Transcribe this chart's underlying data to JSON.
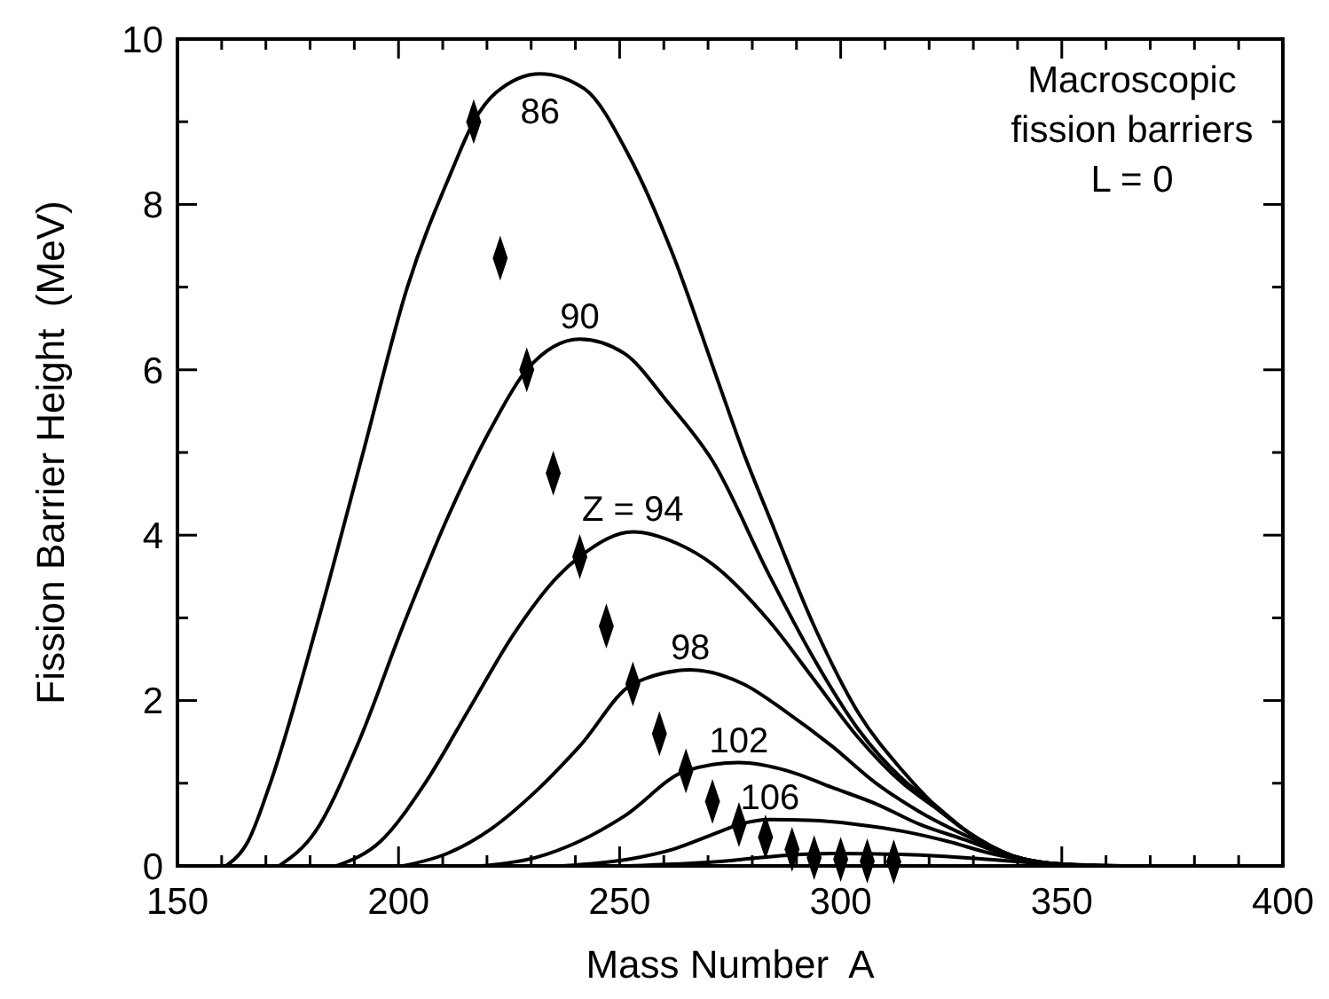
{
  "chart_data": {
    "type": "line",
    "xlabel": "Mass Number  A",
    "ylabel": "Fission Barrier Height  (MeV)",
    "xlim": [
      150,
      400
    ],
    "ylim": [
      0,
      10
    ],
    "xticks": [
      150,
      {
        "value": 160,
        "label": null
      },
      {
        "value": 170,
        "label": null
      },
      {
        "value": 180,
        "label": null
      },
      {
        "value": 190,
        "label": null
      },
      200,
      {
        "value": 210,
        "label": null
      },
      {
        "value": 220,
        "label": null
      },
      {
        "value": 230,
        "label": null
      },
      {
        "value": 240,
        "label": null
      },
      250,
      {
        "value": 260,
        "label": null
      },
      {
        "value": 270,
        "label": null
      },
      {
        "value": 280,
        "label": null
      },
      {
        "value": 290,
        "label": null
      },
      300,
      {
        "value": 310,
        "label": null
      },
      {
        "value": 320,
        "label": null
      },
      {
        "value": 330,
        "label": null
      },
      {
        "value": 340,
        "label": null
      },
      350,
      {
        "value": 360,
        "label": null
      },
      {
        "value": 370,
        "label": null
      },
      {
        "value": 380,
        "label": null
      },
      {
        "value": 390,
        "label": null
      },
      400
    ],
    "yticks": [
      0,
      {
        "value": 1,
        "label": null
      },
      2,
      {
        "value": 3,
        "label": null
      },
      4,
      {
        "value": 5,
        "label": null
      },
      6,
      {
        "value": 7,
        "label": null
      },
      8,
      {
        "value": 9,
        "label": null
      },
      10
    ],
    "grid": false,
    "legend": false,
    "line_style": "solid",
    "series": [
      {
        "name": "86",
        "color": "#000000",
        "x": [
          161,
          166,
          171,
          182,
          192,
          202,
          212,
          217,
          222,
          232,
          242,
          252,
          262,
          272,
          278,
          284,
          294,
          304,
          314,
          321,
          329,
          339,
          350,
          360
        ],
        "values": [
          0,
          0.3,
          1.0,
          3.0,
          5.0,
          7.0,
          8.4,
          9.0,
          9.35,
          9.58,
          9.4,
          8.6,
          7.4,
          5.9,
          5.0,
          4.2,
          2.9,
          1.85,
          1.15,
          0.75,
          0.4,
          0.12,
          0.02,
          0
        ]
      },
      {
        "name": "90",
        "color": "#000000",
        "x": [
          173,
          181,
          191,
          201,
          211,
          221,
          229,
          241,
          251,
          261,
          271,
          284,
          294,
          304,
          314,
          321,
          329,
          339,
          350,
          360
        ],
        "values": [
          0,
          0.4,
          1.5,
          2.9,
          4.2,
          5.3,
          6.0,
          6.37,
          6.2,
          5.6,
          4.9,
          3.5,
          2.5,
          1.65,
          1.05,
          0.75,
          0.4,
          0.12,
          0.02,
          0
        ]
      },
      {
        "name": "Z = 94",
        "color": "#000000",
        "x": [
          186,
          196,
          206,
          216,
          226,
          236,
          241,
          253,
          263,
          271,
          284,
          294,
          304,
          314,
          321,
          329,
          339,
          350,
          360
        ],
        "values": [
          0,
          0.3,
          1.0,
          1.9,
          2.8,
          3.5,
          3.74,
          4.04,
          3.9,
          3.65,
          2.95,
          2.25,
          1.55,
          1.0,
          0.72,
          0.4,
          0.12,
          0.02,
          0
        ]
      },
      {
        "name": "98",
        "color": "#000000",
        "x": [
          201,
          211,
          221,
          231,
          241,
          253,
          266,
          278,
          288,
          298,
          308,
          318,
          329,
          339,
          350,
          360
        ],
        "values": [
          0,
          0.15,
          0.45,
          0.9,
          1.45,
          2.2,
          2.37,
          2.2,
          1.85,
          1.45,
          1.0,
          0.65,
          0.35,
          0.12,
          0.02,
          0
        ]
      },
      {
        "name": "102",
        "color": "#000000",
        "x": [
          219,
          231,
          241,
          251,
          265,
          277,
          288,
          298,
          308,
          318,
          329,
          339,
          350,
          360
        ],
        "values": [
          0,
          0.1,
          0.3,
          0.6,
          1.15,
          1.25,
          1.15,
          0.95,
          0.75,
          0.5,
          0.3,
          0.1,
          0.02,
          0
        ]
      },
      {
        "name": "106",
        "color": "#000000",
        "x": [
          237,
          252,
          262,
          272,
          277,
          284,
          294,
          304,
          314,
          324,
          334,
          344,
          354,
          362
        ],
        "values": [
          0,
          0.08,
          0.2,
          0.4,
          0.5,
          0.56,
          0.55,
          0.5,
          0.42,
          0.3,
          0.15,
          0.05,
          0.01,
          0
        ]
      },
      {
        "color": "#000000",
        "x": [
          252,
          272,
          288,
          298,
          313,
          328,
          343,
          356,
          364
        ],
        "values": [
          0,
          0.05,
          0.13,
          0.15,
          0.14,
          0.1,
          0.04,
          0.01,
          0
        ]
      },
      {
        "type": "scatter",
        "color": "#000000",
        "marker": "diamond",
        "x": [
          217,
          223,
          229,
          235,
          241,
          247,
          253,
          259,
          265,
          271,
          277,
          283,
          289,
          294,
          300,
          306,
          312
        ],
        "values": [
          9.0,
          7.35,
          6.0,
          4.75,
          3.74,
          2.9,
          2.2,
          1.6,
          1.15,
          0.78,
          0.5,
          0.35,
          0.2,
          0.1,
          0.08,
          0.06,
          0.05
        ]
      }
    ],
    "annotations": [
      "Macroscopic",
      "fission barriers",
      "L = 0"
    ]
  }
}
